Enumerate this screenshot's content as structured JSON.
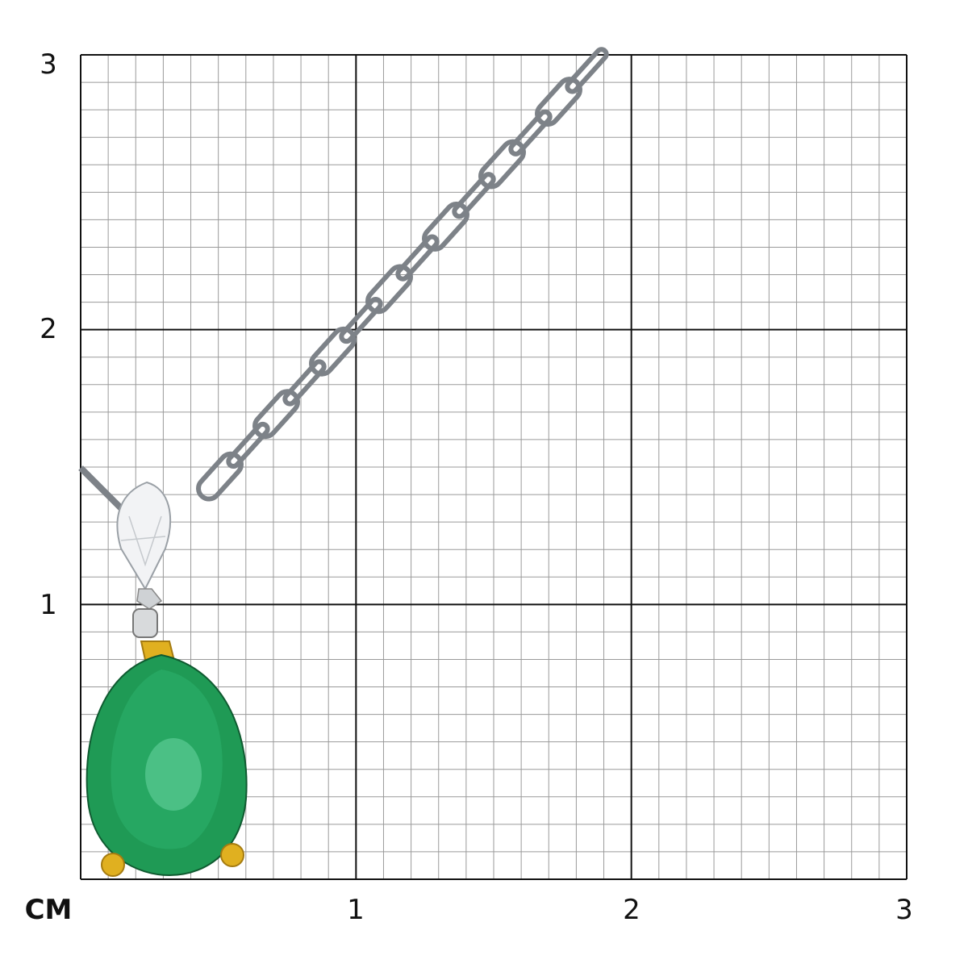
{
  "scale": {
    "unit": "CM",
    "y_labels": [
      "3",
      "2",
      "1"
    ],
    "x_labels": [
      "1",
      "2",
      "3"
    ],
    "max_cm": 3,
    "minor_divisions_per_cm": 10
  },
  "colors": {
    "grid_major": "#111111",
    "grid_minor": "#9a9a9a",
    "emerald": "#1f9a55",
    "gold": "#e0b020",
    "metal": "#d8dadc"
  }
}
